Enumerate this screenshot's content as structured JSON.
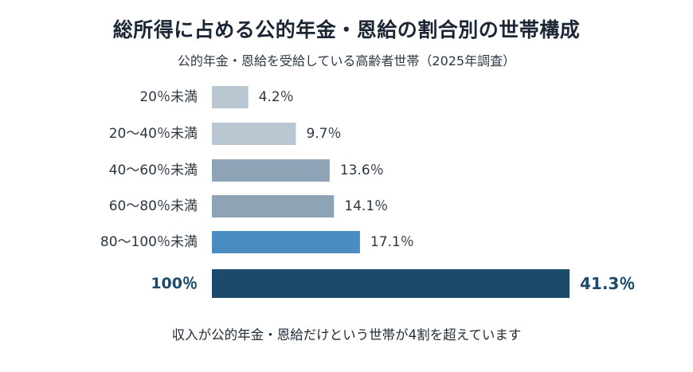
{
  "chart_data": {
    "type": "bar",
    "orientation": "horizontal",
    "title": "総所得に占める公的年金・恩給の割合別の世帯構成",
    "subtitle": "公的年金・恩給を受給している高齢者世帯（2025年調査）",
    "footnote": "収入が公的年金・恩給だけという世帯が4割を超えています",
    "categories": [
      "20％未満",
      "20～40％未満",
      "40～60％未満",
      "60～80％未満",
      "80～100％未満",
      "100％"
    ],
    "values": [
      4.2,
      9.7,
      13.6,
      14.1,
      17.1,
      41.3
    ],
    "value_labels": [
      "4.2％",
      "9.7％",
      "13.6％",
      "14.1％",
      "17.1％",
      "41.3％"
    ],
    "unit": "%",
    "highlight_index": 5,
    "colors": [
      "#b9c7d2",
      "#b9c7d2",
      "#8ea3b5",
      "#8ea3b5",
      "#4a8cc0",
      "#1b4a6b"
    ],
    "xlim": [
      0,
      41.3
    ],
    "grid": false,
    "legend": "none"
  }
}
